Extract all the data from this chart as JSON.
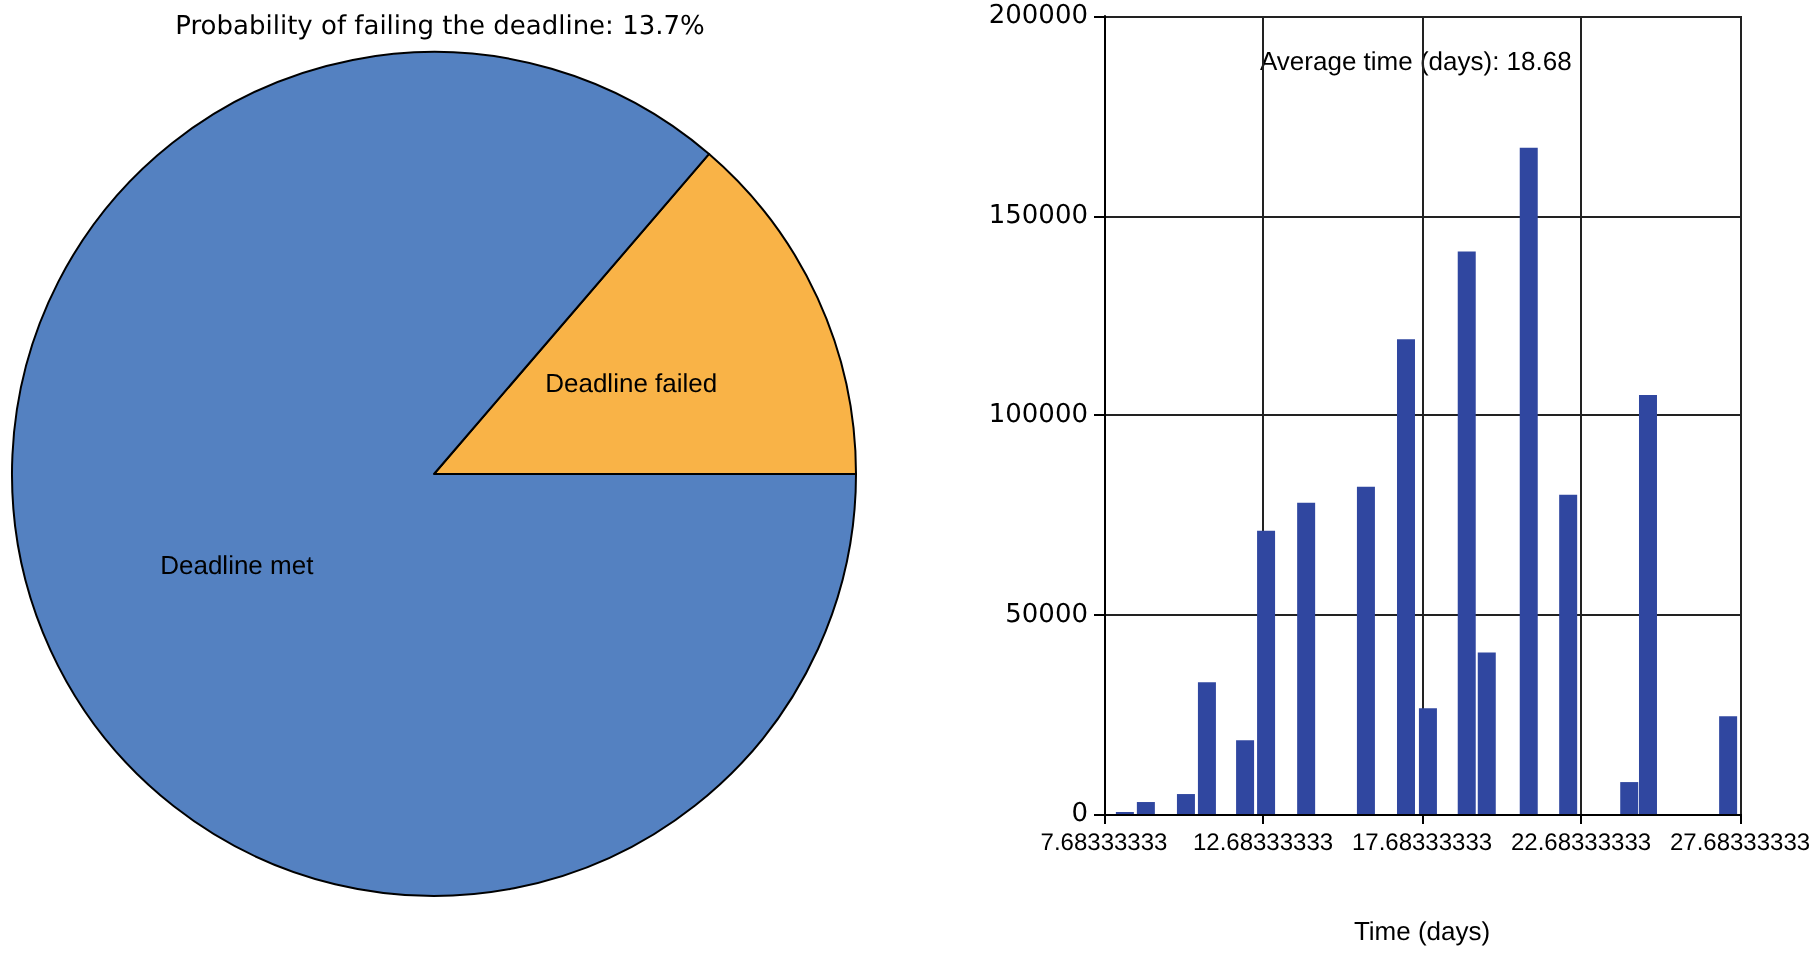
{
  "chart_data": [
    {
      "type": "pie",
      "title": "Probability of failing the deadline: 13.7%",
      "categories": [
        "Deadline failed",
        "Deadline met"
      ],
      "values": [
        13.7,
        86.3
      ],
      "colors": [
        "#f9b347",
        "#5481c1"
      ],
      "legend": false
    },
    {
      "type": "bar",
      "xlabel": "Time (days)",
      "annotations": [
        "Average time (days): 18.68"
      ],
      "x": [
        8.34,
        9.0,
        10.26,
        10.92,
        12.12,
        12.78,
        14.04,
        15.92,
        17.18,
        17.87,
        19.09,
        19.72,
        21.04,
        22.28,
        24.2,
        24.79,
        27.31
      ],
      "values": [
        500,
        3000,
        5000,
        33000,
        18500,
        71000,
        78000,
        82000,
        119000,
        26500,
        141000,
        40500,
        167000,
        80000,
        8000,
        105000,
        24500
      ],
      "color": "#3047a0",
      "xlim": [
        7.68333333,
        27.68333333
      ],
      "xticks": [
        7.68333333,
        12.68333333,
        17.68333333,
        22.68333333,
        27.68333333
      ],
      "ylim": [
        0,
        200000
      ],
      "yticks": [
        0,
        50000,
        100000,
        150000,
        200000
      ],
      "grid": true,
      "legend": false
    }
  ]
}
